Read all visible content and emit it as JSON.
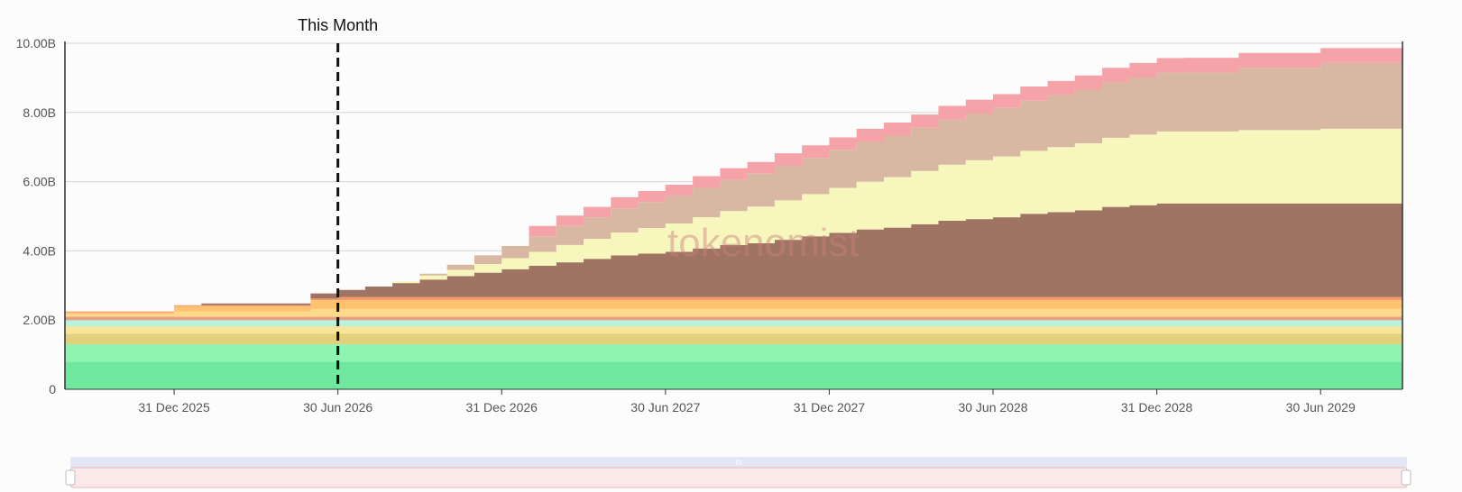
{
  "chart_data": {
    "type": "area",
    "stacked": true,
    "step": true,
    "y_tick_labels": [
      "0",
      "2.00B",
      "4.00B",
      "6.00B",
      "8.00B",
      "10.00B"
    ],
    "x_tick_labels": [
      "31 Dec 2025",
      "30 Jun 2026",
      "31 Dec 2026",
      "30 Jun 2027",
      "31 Dec 2027",
      "30 Jun 2028",
      "31 Dec 2028",
      "30 Jun 2029"
    ],
    "ylim": [
      0,
      10
    ],
    "y_unit": "B",
    "x_start": "2025-09",
    "x_end": "2029-10",
    "grid": true,
    "marker": {
      "label": "This Month",
      "date": "2026-06"
    },
    "watermark": "tokenomist",
    "series": [
      {
        "color": "#70e8a0",
        "points": [
          [
            "2025-09",
            0.8
          ],
          [
            "2029-10",
            0.8
          ]
        ]
      },
      {
        "color": "#8ef5b0",
        "points": [
          [
            "2025-09",
            0.5
          ],
          [
            "2029-10",
            0.5
          ]
        ]
      },
      {
        "color": "#e2d07a",
        "points": [
          [
            "2025-09",
            0.3
          ],
          [
            "2029-10",
            0.3
          ]
        ]
      },
      {
        "color": "#f6e59a",
        "points": [
          [
            "2025-09",
            0.22
          ],
          [
            "2029-10",
            0.22
          ]
        ]
      },
      {
        "color": "#b7f2dc",
        "points": [
          [
            "2025-09",
            0.18
          ],
          [
            "2029-10",
            0.18
          ]
        ]
      },
      {
        "color": "#e9a080",
        "points": [
          [
            "2025-09",
            0.1
          ],
          [
            "2029-10",
            0.1
          ]
        ]
      },
      {
        "color": "#ffd98a",
        "points": [
          [
            "2025-09",
            0.07
          ],
          [
            "2026-01",
            0.15
          ],
          [
            "2026-06",
            0.22
          ],
          [
            "2029-10",
            0.22
          ]
        ]
      },
      {
        "color": "#ffc370",
        "points": [
          [
            "2025-09",
            0.05
          ],
          [
            "2026-01",
            0.15
          ],
          [
            "2026-06",
            0.25
          ],
          [
            "2029-10",
            0.25
          ]
        ]
      },
      {
        "color": "#f39a6a",
        "points": [
          [
            "2025-09",
            0.03
          ],
          [
            "2026-06",
            0.05
          ],
          [
            "2026-07",
            0.1
          ],
          [
            "2029-10",
            0.1
          ]
        ]
      },
      {
        "color": "#a07462",
        "points": [
          [
            "2025-09",
            0.0
          ],
          [
            "2026-02",
            0.05
          ],
          [
            "2026-06",
            0.15
          ],
          [
            "2026-07",
            0.2
          ],
          [
            "2026-08",
            0.3
          ],
          [
            "2026-09",
            0.4
          ],
          [
            "2026-10",
            0.5
          ],
          [
            "2026-11",
            0.6
          ],
          [
            "2026-12",
            0.7
          ],
          [
            "2027-01",
            0.8
          ],
          [
            "2027-02",
            0.9
          ],
          [
            "2027-03",
            1.0
          ],
          [
            "2027-04",
            1.1
          ],
          [
            "2027-05",
            1.2
          ],
          [
            "2027-06",
            1.25
          ],
          [
            "2027-07",
            1.3
          ],
          [
            "2027-08",
            1.4
          ],
          [
            "2027-09",
            1.5
          ],
          [
            "2027-10",
            1.55
          ],
          [
            "2027-11",
            1.65
          ],
          [
            "2027-12",
            1.75
          ],
          [
            "2028-01",
            1.85
          ],
          [
            "2028-02",
            1.95
          ],
          [
            "2028-03",
            2.0
          ],
          [
            "2028-04",
            2.1
          ],
          [
            "2028-05",
            2.2
          ],
          [
            "2028-06",
            2.25
          ],
          [
            "2028-07",
            2.3
          ],
          [
            "2028-08",
            2.4
          ],
          [
            "2028-09",
            2.45
          ],
          [
            "2028-10",
            2.5
          ],
          [
            "2028-11",
            2.6
          ],
          [
            "2028-12",
            2.65
          ],
          [
            "2029-01",
            2.7
          ],
          [
            "2029-10",
            2.7
          ]
        ]
      },
      {
        "color": "#f7f7bd",
        "points": [
          [
            "2025-09",
            0.0
          ],
          [
            "2026-09",
            0.05
          ],
          [
            "2026-10",
            0.12
          ],
          [
            "2026-11",
            0.18
          ],
          [
            "2026-12",
            0.25
          ],
          [
            "2027-01",
            0.32
          ],
          [
            "2027-02",
            0.4
          ],
          [
            "2027-03",
            0.5
          ],
          [
            "2027-04",
            0.58
          ],
          [
            "2027-05",
            0.66
          ],
          [
            "2027-06",
            0.74
          ],
          [
            "2027-07",
            0.82
          ],
          [
            "2027-08",
            0.9
          ],
          [
            "2027-09",
            0.98
          ],
          [
            "2027-10",
            1.06
          ],
          [
            "2027-11",
            1.14
          ],
          [
            "2027-12",
            1.22
          ],
          [
            "2028-01",
            1.3
          ],
          [
            "2028-02",
            1.38
          ],
          [
            "2028-03",
            1.46
          ],
          [
            "2028-04",
            1.54
          ],
          [
            "2028-05",
            1.62
          ],
          [
            "2028-06",
            1.7
          ],
          [
            "2028-07",
            1.76
          ],
          [
            "2028-08",
            1.82
          ],
          [
            "2028-09",
            1.88
          ],
          [
            "2028-10",
            1.94
          ],
          [
            "2028-11",
            2.0
          ],
          [
            "2028-12",
            2.04
          ],
          [
            "2029-01",
            2.08
          ],
          [
            "2029-04",
            2.12
          ],
          [
            "2029-07",
            2.16
          ],
          [
            "2029-10",
            2.2
          ]
        ]
      },
      {
        "color": "#d8b8a2",
        "points": [
          [
            "2025-09",
            0.0
          ],
          [
            "2026-10",
            0.05
          ],
          [
            "2026-11",
            0.15
          ],
          [
            "2026-12",
            0.25
          ],
          [
            "2027-01",
            0.35
          ],
          [
            "2027-02",
            0.45
          ],
          [
            "2027-03",
            0.55
          ],
          [
            "2027-04",
            0.62
          ],
          [
            "2027-05",
            0.7
          ],
          [
            "2027-06",
            0.75
          ],
          [
            "2027-07",
            0.8
          ],
          [
            "2027-08",
            0.85
          ],
          [
            "2027-09",
            0.9
          ],
          [
            "2027-10",
            0.95
          ],
          [
            "2027-11",
            1.0
          ],
          [
            "2027-12",
            1.05
          ],
          [
            "2028-01",
            1.1
          ],
          [
            "2028-02",
            1.15
          ],
          [
            "2028-03",
            1.2
          ],
          [
            "2028-04",
            1.25
          ],
          [
            "2028-05",
            1.3
          ],
          [
            "2028-06",
            1.35
          ],
          [
            "2028-07",
            1.4
          ],
          [
            "2028-08",
            1.45
          ],
          [
            "2028-09",
            1.5
          ],
          [
            "2028-10",
            1.55
          ],
          [
            "2028-11",
            1.6
          ],
          [
            "2028-12",
            1.65
          ],
          [
            "2029-01",
            1.7
          ],
          [
            "2029-04",
            1.8
          ],
          [
            "2029-07",
            1.9
          ],
          [
            "2029-10",
            2.0
          ]
        ]
      },
      {
        "color": "#f5a3a8",
        "points": [
          [
            "2025-09",
            0.0
          ],
          [
            "2027-02",
            0.3
          ],
          [
            "2027-05",
            0.32
          ],
          [
            "2027-08",
            0.34
          ],
          [
            "2027-11",
            0.36
          ],
          [
            "2028-02",
            0.38
          ],
          [
            "2028-05",
            0.4
          ],
          [
            "2028-08",
            0.41
          ],
          [
            "2028-11",
            0.42
          ],
          [
            "2029-02",
            0.43
          ],
          [
            "2029-10",
            0.44
          ]
        ]
      }
    ]
  },
  "slider": {
    "handle_glyph": "III"
  },
  "colors": {
    "gridline": "#d4d4d4",
    "axis": "#333333",
    "marker_line": "#111111",
    "slider_track": "#e3e6f5",
    "slider_window": "#fbe9ea",
    "slider_window_border": "#e8b8bc"
  }
}
